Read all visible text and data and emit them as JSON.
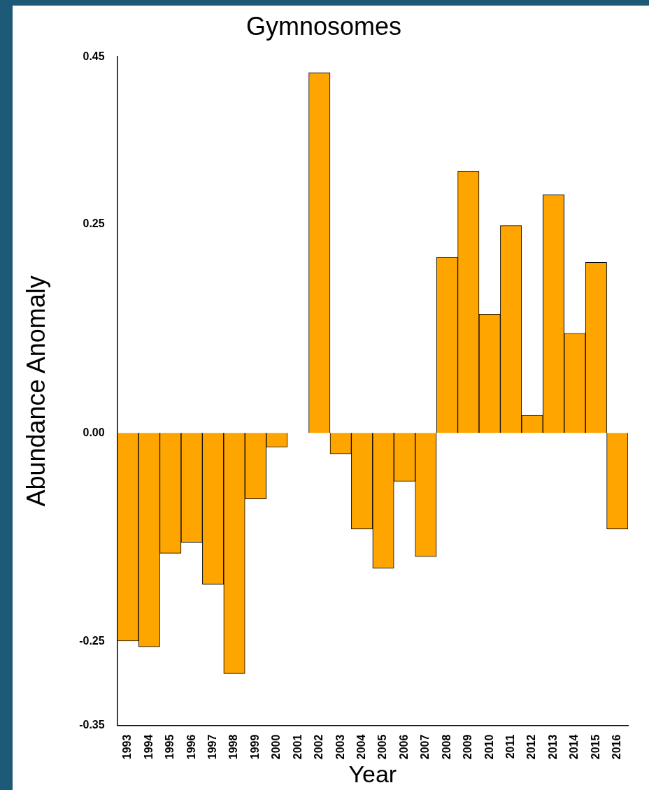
{
  "chart_data": {
    "type": "bar",
    "title": "Gymnosomes",
    "xlabel": "Year",
    "ylabel": "Abundance Anomaly",
    "categories": [
      "1993",
      "1994",
      "1995",
      "1996",
      "1997",
      "1998",
      "1999",
      "2000",
      "2001",
      "2002",
      "2003",
      "2004",
      "2005",
      "2006",
      "2007",
      "2008",
      "2009",
      "2010",
      "2011",
      "2012",
      "2013",
      "2014",
      "2015",
      "2016"
    ],
    "values": [
      -0.249,
      -0.256,
      -0.144,
      -0.131,
      -0.181,
      -0.288,
      -0.079,
      -0.017,
      0,
      0.431,
      -0.025,
      -0.115,
      -0.162,
      -0.058,
      -0.148,
      0.21,
      0.313,
      0.142,
      0.248,
      0.021,
      0.285,
      0.119,
      0.204,
      -0.115
    ],
    "color": "#ffa500",
    "ylim": [
      -0.35,
      0.45
    ],
    "yticks": [
      -0.35,
      -0.25,
      {
        "value": 0,
        "label": "0.00"
      },
      0.25,
      0.45
    ],
    "grid": false,
    "legend": false
  }
}
